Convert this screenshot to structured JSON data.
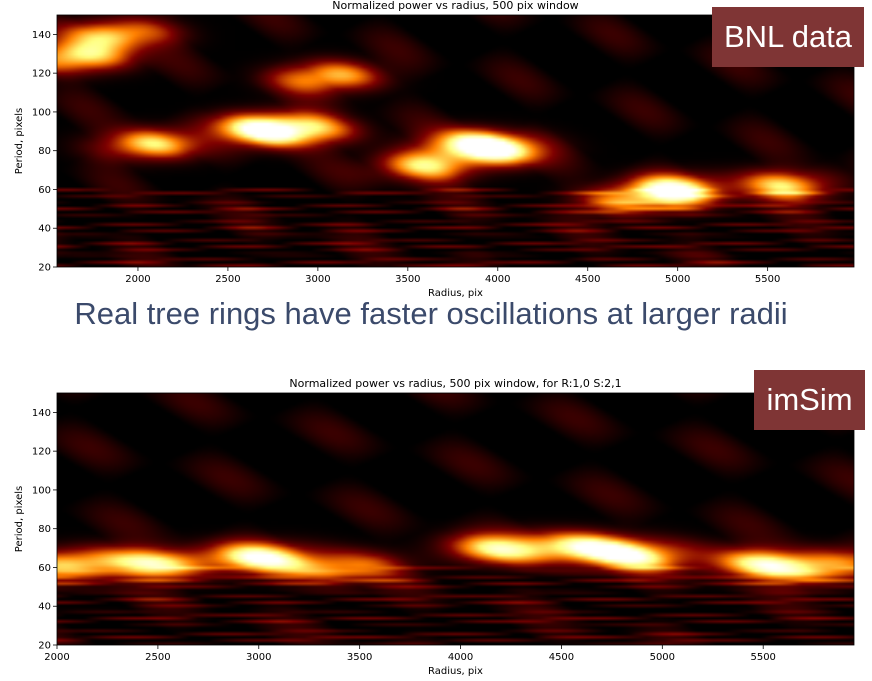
{
  "caption": "Real tree rings have faster oscillations at larger radii",
  "tags": {
    "top": "BNL data",
    "bottom": "imSim"
  },
  "colors": {
    "tag_bg": "#7f3535",
    "caption": "#3b4a6b",
    "colormap": "afmhot"
  },
  "chart_data": [
    {
      "type": "heatmap",
      "title": "Normalized power vs radius, 500 pix window",
      "xlabel": "Radius, pix",
      "ylabel": "Period, pixels",
      "xlim": [
        1550,
        5980
      ],
      "ylim": [
        20,
        150
      ],
      "xticks": [
        2000,
        2500,
        3000,
        3500,
        4000,
        4500,
        5000,
        5500
      ],
      "yticks": [
        20,
        40,
        60,
        80,
        100,
        120,
        140
      ],
      "colormap": "afmhot",
      "features": [
        {
          "x": 1650,
          "y": 128,
          "intensity": 1.0
        },
        {
          "x": 1900,
          "y": 140,
          "intensity": 0.9
        },
        {
          "x": 2050,
          "y": 83,
          "intensity": 0.85
        },
        {
          "x": 2700,
          "y": 92,
          "intensity": 1.0
        },
        {
          "x": 2900,
          "y": 90,
          "intensity": 0.95
        },
        {
          "x": 3050,
          "y": 118,
          "intensity": 0.85
        },
        {
          "x": 3600,
          "y": 72,
          "intensity": 0.8
        },
        {
          "x": 3850,
          "y": 83,
          "intensity": 0.9
        },
        {
          "x": 4000,
          "y": 80,
          "intensity": 0.85
        },
        {
          "x": 4750,
          "y": 55,
          "intensity": 0.75
        },
        {
          "x": 5000,
          "y": 60,
          "intensity": 0.95
        },
        {
          "x": 5600,
          "y": 62,
          "intensity": 0.8
        }
      ]
    },
    {
      "type": "heatmap",
      "title": "Normalized power vs radius, 500 pix window, for R:1,0 S:2,1",
      "xlabel": "Radius, pix",
      "ylabel": "Period, pixels",
      "xlim": [
        2000,
        5950
      ],
      "ylim": [
        20,
        150
      ],
      "xticks": [
        2000,
        2500,
        3000,
        3500,
        4000,
        4500,
        5000,
        5500
      ],
      "yticks": [
        20,
        40,
        60,
        80,
        100,
        120,
        140
      ],
      "colormap": "afmhot",
      "features": [
        {
          "x": 2100,
          "y": 62,
          "intensity": 0.9
        },
        {
          "x": 2500,
          "y": 62,
          "intensity": 0.85
        },
        {
          "x": 3000,
          "y": 65,
          "intensity": 1.0
        },
        {
          "x": 3400,
          "y": 60,
          "intensity": 0.75
        },
        {
          "x": 4200,
          "y": 70,
          "intensity": 0.85
        },
        {
          "x": 4600,
          "y": 70,
          "intensity": 1.0
        },
        {
          "x": 4900,
          "y": 66,
          "intensity": 0.9
        },
        {
          "x": 5500,
          "y": 62,
          "intensity": 0.85
        },
        {
          "x": 5800,
          "y": 60,
          "intensity": 0.8
        }
      ]
    }
  ]
}
